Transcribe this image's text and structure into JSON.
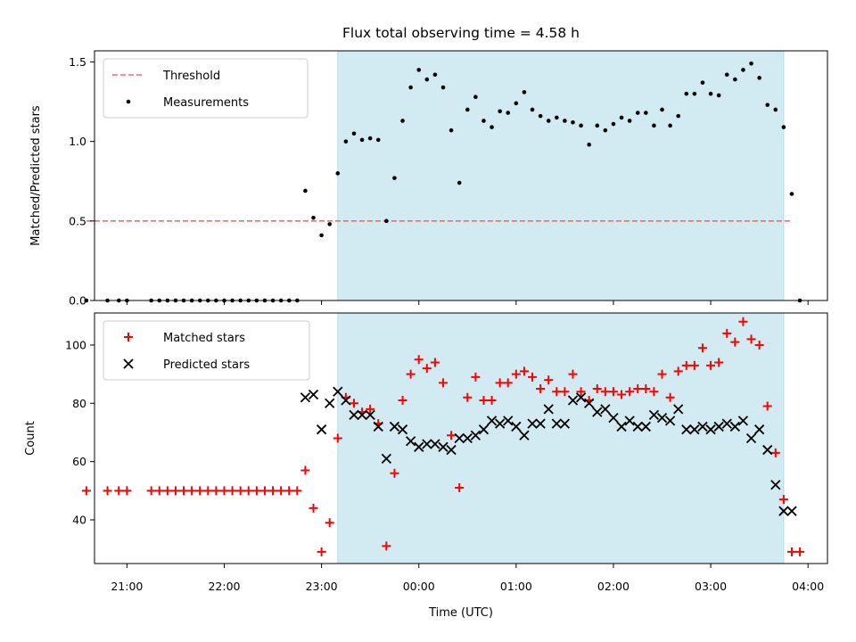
{
  "chart_data": [
    {
      "type": "scatter",
      "title": "Flux total observing time = 4.58 h",
      "xlabel": "",
      "ylabel": "Matched/Predicted stars",
      "ylim": [
        0,
        1.57
      ],
      "xlim": [
        "20:40",
        "04:12"
      ],
      "yticks": [
        "0.0",
        "0.5",
        "1.0",
        "1.5"
      ],
      "grid": false,
      "legend_position": "upper-left",
      "shaded_region": {
        "x_start": "23:10",
        "x_end": "03:45",
        "color": "#add8e6"
      },
      "threshold": {
        "name": "Threshold",
        "value": 0.5,
        "x_start": "20:35",
        "x_end": "03:50",
        "color": "#ff6666",
        "style": "dashed"
      },
      "series": [
        {
          "name": "Measurements",
          "color": "#000000",
          "marker": "dot",
          "points": [
            [
              "20:35",
              0
            ],
            [
              "20:48",
              0
            ],
            [
              "20:55",
              0
            ],
            [
              "21:00",
              0
            ],
            [
              "21:15",
              0
            ],
            [
              "21:20",
              0
            ],
            [
              "21:25",
              0
            ],
            [
              "21:30",
              0
            ],
            [
              "21:35",
              0
            ],
            [
              "21:40",
              0
            ],
            [
              "21:45",
              0
            ],
            [
              "21:50",
              0
            ],
            [
              "21:55",
              0
            ],
            [
              "22:00",
              0
            ],
            [
              "22:05",
              0
            ],
            [
              "22:10",
              0
            ],
            [
              "22:15",
              0
            ],
            [
              "22:20",
              0
            ],
            [
              "22:25",
              0
            ],
            [
              "22:30",
              0
            ],
            [
              "22:35",
              0
            ],
            [
              "22:40",
              0
            ],
            [
              "22:45",
              0
            ],
            [
              "22:50",
              0.69
            ],
            [
              "22:55",
              0.52
            ],
            [
              "23:00",
              0.41
            ],
            [
              "23:05",
              0.48
            ],
            [
              "23:10",
              0.8
            ],
            [
              "23:15",
              1.0
            ],
            [
              "23:20",
              1.05
            ],
            [
              "23:25",
              1.01
            ],
            [
              "23:30",
              1.02
            ],
            [
              "23:35",
              1.01
            ],
            [
              "23:40",
              0.5
            ],
            [
              "23:45",
              0.77
            ],
            [
              "23:50",
              1.13
            ],
            [
              "23:55",
              1.34
            ],
            [
              "00:00",
              1.45
            ],
            [
              "00:05",
              1.39
            ],
            [
              "00:10",
              1.42
            ],
            [
              "00:15",
              1.34
            ],
            [
              "00:20",
              1.07
            ],
            [
              "00:25",
              0.74
            ],
            [
              "00:30",
              1.2
            ],
            [
              "00:35",
              1.28
            ],
            [
              "00:40",
              1.13
            ],
            [
              "00:45",
              1.09
            ],
            [
              "00:50",
              1.19
            ],
            [
              "00:55",
              1.18
            ],
            [
              "01:00",
              1.24
            ],
            [
              "01:05",
              1.31
            ],
            [
              "01:10",
              1.2
            ],
            [
              "01:15",
              1.16
            ],
            [
              "01:20",
              1.13
            ],
            [
              "01:25",
              1.15
            ],
            [
              "01:30",
              1.13
            ],
            [
              "01:35",
              1.12
            ],
            [
              "01:40",
              1.1
            ],
            [
              "01:45",
              0.98
            ],
            [
              "01:50",
              1.1
            ],
            [
              "01:55",
              1.07
            ],
            [
              "02:00",
              1.11
            ],
            [
              "02:05",
              1.15
            ],
            [
              "02:10",
              1.13
            ],
            [
              "02:15",
              1.18
            ],
            [
              "02:20",
              1.18
            ],
            [
              "02:25",
              1.1
            ],
            [
              "02:30",
              1.2
            ],
            [
              "02:35",
              1.1
            ],
            [
              "02:40",
              1.16
            ],
            [
              "02:45",
              1.3
            ],
            [
              "02:50",
              1.3
            ],
            [
              "02:55",
              1.37
            ],
            [
              "03:00",
              1.3
            ],
            [
              "03:05",
              1.29
            ],
            [
              "03:10",
              1.42
            ],
            [
              "03:15",
              1.39
            ],
            [
              "03:20",
              1.45
            ],
            [
              "03:25",
              1.49
            ],
            [
              "03:30",
              1.4
            ],
            [
              "03:35",
              1.23
            ],
            [
              "03:40",
              1.2
            ],
            [
              "03:45",
              1.09
            ],
            [
              "03:50",
              0.67
            ],
            [
              "03:55",
              0
            ]
          ]
        }
      ]
    },
    {
      "type": "scatter",
      "title": "",
      "xlabel": "Time (UTC)",
      "ylabel": "Count",
      "ylim": [
        25,
        111
      ],
      "xlim": [
        "20:40",
        "04:12"
      ],
      "xticks": [
        "21:00",
        "22:00",
        "23:00",
        "00:00",
        "01:00",
        "02:00",
        "03:00",
        "04:00"
      ],
      "yticks": [
        "40",
        "60",
        "80",
        "100"
      ],
      "grid": false,
      "legend_position": "upper-left",
      "shaded_region": {
        "x_start": "23:10",
        "x_end": "03:45",
        "color": "#add8e6"
      },
      "series": [
        {
          "name": "Matched stars",
          "color": "#ff0000",
          "marker": "plus",
          "points": [
            [
              "20:35",
              50
            ],
            [
              "20:48",
              50
            ],
            [
              "20:55",
              50
            ],
            [
              "21:00",
              50
            ],
            [
              "21:15",
              50
            ],
            [
              "21:20",
              50
            ],
            [
              "21:25",
              50
            ],
            [
              "21:30",
              50
            ],
            [
              "21:35",
              50
            ],
            [
              "21:40",
              50
            ],
            [
              "21:45",
              50
            ],
            [
              "21:50",
              50
            ],
            [
              "21:55",
              50
            ],
            [
              "22:00",
              50
            ],
            [
              "22:05",
              50
            ],
            [
              "22:10",
              50
            ],
            [
              "22:15",
              50
            ],
            [
              "22:20",
              50
            ],
            [
              "22:25",
              50
            ],
            [
              "22:30",
              50
            ],
            [
              "22:35",
              50
            ],
            [
              "22:40",
              50
            ],
            [
              "22:45",
              50
            ],
            [
              "22:50",
              57
            ],
            [
              "22:55",
              44
            ],
            [
              "23:00",
              29
            ],
            [
              "23:05",
              39
            ],
            [
              "23:10",
              68
            ],
            [
              "23:15",
              82
            ],
            [
              "23:20",
              80
            ],
            [
              "23:25",
              77
            ],
            [
              "23:30",
              78
            ],
            [
              "23:35",
              73
            ],
            [
              "23:40",
              31
            ],
            [
              "23:45",
              56
            ],
            [
              "23:50",
              81
            ],
            [
              "23:55",
              90
            ],
            [
              "00:00",
              95
            ],
            [
              "00:05",
              92
            ],
            [
              "00:10",
              94
            ],
            [
              "00:15",
              87
            ],
            [
              "00:20",
              69
            ],
            [
              "00:25",
              51
            ],
            [
              "00:30",
              82
            ],
            [
              "00:35",
              89
            ],
            [
              "00:40",
              81
            ],
            [
              "00:45",
              81
            ],
            [
              "00:50",
              87
            ],
            [
              "00:55",
              87
            ],
            [
              "01:00",
              90
            ],
            [
              "01:05",
              91
            ],
            [
              "01:10",
              89
            ],
            [
              "01:15",
              85
            ],
            [
              "01:20",
              88
            ],
            [
              "01:25",
              84
            ],
            [
              "01:30",
              84
            ],
            [
              "01:35",
              90
            ],
            [
              "01:40",
              84
            ],
            [
              "01:45",
              81
            ],
            [
              "01:50",
              85
            ],
            [
              "01:55",
              84
            ],
            [
              "02:00",
              84
            ],
            [
              "02:05",
              83
            ],
            [
              "02:10",
              84
            ],
            [
              "02:15",
              85
            ],
            [
              "02:20",
              85
            ],
            [
              "02:25",
              84
            ],
            [
              "02:30",
              90
            ],
            [
              "02:35",
              82
            ],
            [
              "02:40",
              91
            ],
            [
              "02:45",
              93
            ],
            [
              "02:50",
              93
            ],
            [
              "02:55",
              99
            ],
            [
              "03:00",
              93
            ],
            [
              "03:05",
              94
            ],
            [
              "03:10",
              104
            ],
            [
              "03:15",
              101
            ],
            [
              "03:20",
              108
            ],
            [
              "03:25",
              102
            ],
            [
              "03:30",
              100
            ],
            [
              "03:35",
              79
            ],
            [
              "03:40",
              63
            ],
            [
              "03:45",
              47
            ],
            [
              "03:50",
              29
            ],
            [
              "03:55",
              29
            ]
          ]
        },
        {
          "name": "Predicted stars",
          "color": "#000000",
          "marker": "x",
          "points": [
            [
              "22:50",
              82
            ],
            [
              "22:55",
              83
            ],
            [
              "23:00",
              71
            ],
            [
              "23:05",
              80
            ],
            [
              "23:10",
              84
            ],
            [
              "23:15",
              81
            ],
            [
              "23:20",
              76
            ],
            [
              "23:25",
              76
            ],
            [
              "23:30",
              76
            ],
            [
              "23:35",
              72
            ],
            [
              "23:40",
              61
            ],
            [
              "23:45",
              72
            ],
            [
              "23:50",
              71
            ],
            [
              "23:55",
              67
            ],
            [
              "00:00",
              65
            ],
            [
              "00:05",
              66
            ],
            [
              "00:10",
              66
            ],
            [
              "00:15",
              65
            ],
            [
              "00:20",
              64
            ],
            [
              "00:25",
              68
            ],
            [
              "00:30",
              68
            ],
            [
              "00:35",
              69
            ],
            [
              "00:40",
              71
            ],
            [
              "00:45",
              74
            ],
            [
              "00:50",
              73
            ],
            [
              "00:55",
              74
            ],
            [
              "01:00",
              72
            ],
            [
              "01:05",
              69
            ],
            [
              "01:10",
              73
            ],
            [
              "01:15",
              73
            ],
            [
              "01:20",
              78
            ],
            [
              "01:25",
              73
            ],
            [
              "01:30",
              73
            ],
            [
              "01:35",
              81
            ],
            [
              "01:40",
              82
            ],
            [
              "01:45",
              80
            ],
            [
              "01:50",
              77
            ],
            [
              "01:55",
              78
            ],
            [
              "02:00",
              75
            ],
            [
              "02:05",
              72
            ],
            [
              "02:10",
              74
            ],
            [
              "02:15",
              72
            ],
            [
              "02:20",
              72
            ],
            [
              "02:25",
              76
            ],
            [
              "02:30",
              75
            ],
            [
              "02:35",
              74
            ],
            [
              "02:40",
              78
            ],
            [
              "02:45",
              71
            ],
            [
              "02:50",
              71
            ],
            [
              "02:55",
              72
            ],
            [
              "03:00",
              71
            ],
            [
              "03:05",
              72
            ],
            [
              "03:10",
              73
            ],
            [
              "03:15",
              72
            ],
            [
              "03:20",
              74
            ],
            [
              "03:25",
              68
            ],
            [
              "03:30",
              71
            ],
            [
              "03:35",
              64
            ],
            [
              "03:40",
              52
            ],
            [
              "03:45",
              43
            ],
            [
              "03:50",
              43
            ]
          ]
        }
      ]
    }
  ]
}
